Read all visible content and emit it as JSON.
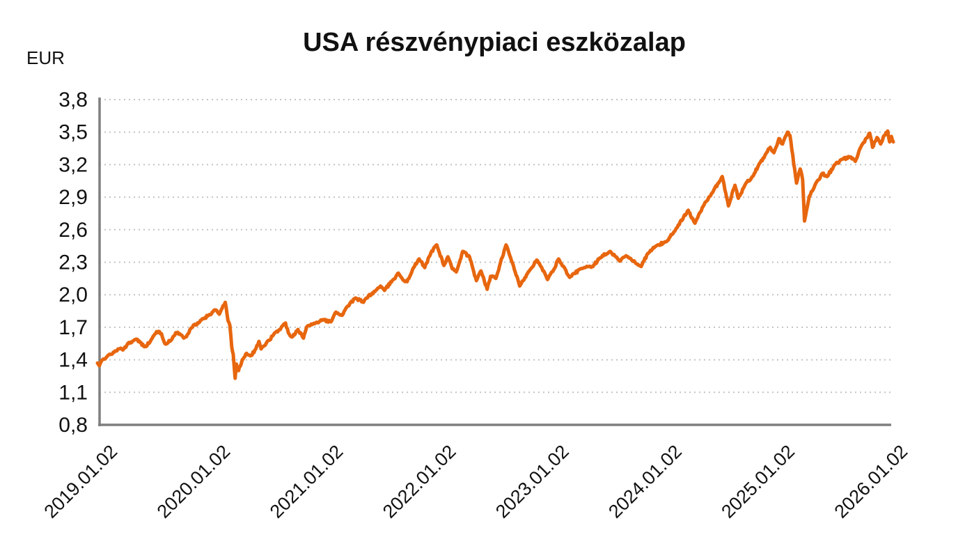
{
  "page": {
    "background_color": "#FFFFFF"
  },
  "chart_data": {
    "type": "line",
    "title": "USA részvénypiaci eszközalap",
    "ylabel": "EUR",
    "xlabel": "",
    "legend": "none",
    "grid": "horizontal-dotted",
    "ylim": [
      0.8,
      3.8
    ],
    "ytick_step": 0.3,
    "yticks": [
      {
        "v": 3.8,
        "label": "3,8"
      },
      {
        "v": 3.5,
        "label": "3,5"
      },
      {
        "v": 3.2,
        "label": "3,2"
      },
      {
        "v": 2.9,
        "label": "2,9"
      },
      {
        "v": 2.6,
        "label": "2,6"
      },
      {
        "v": 2.3,
        "label": "2,3"
      },
      {
        "v": 2.0,
        "label": "2,0"
      },
      {
        "v": 1.7,
        "label": "1,7"
      },
      {
        "v": 1.4,
        "label": "1,4"
      },
      {
        "v": 1.1,
        "label": "1,1"
      },
      {
        "v": 0.8,
        "label": "0,8"
      }
    ],
    "xticks": [
      {
        "date": "2019-01-02",
        "label": "2019.01.02"
      },
      {
        "date": "2020-01-02",
        "label": "2020.01.02"
      },
      {
        "date": "2021-01-02",
        "label": "2021.01.02"
      },
      {
        "date": "2022-01-02",
        "label": "2022.01.02"
      },
      {
        "date": "2023-01-02",
        "label": "2023.01.02"
      },
      {
        "date": "2024-01-02",
        "label": "2024.01.02"
      },
      {
        "date": "2025-01-02",
        "label": "2025.01.02"
      },
      {
        "date": "2026-01-02",
        "label": "2026.01.02"
      }
    ],
    "colors": {
      "line": "#E7660E",
      "axis": "#7F7F7F",
      "grid": "#C3C3C3",
      "text": "#111111"
    },
    "series": [
      {
        "name": "USA részvénypiaci eszközalap",
        "unit": "EUR",
        "points": [
          [
            "2019-01-02",
            1.37
          ],
          [
            "2019-01-08",
            1.345
          ],
          [
            "2019-01-18",
            1.4
          ],
          [
            "2019-02-05",
            1.44
          ],
          [
            "2019-02-25",
            1.47
          ],
          [
            "2019-03-12",
            1.5
          ],
          [
            "2019-03-25",
            1.49
          ],
          [
            "2019-04-10",
            1.55
          ],
          [
            "2019-04-25",
            1.57
          ],
          [
            "2019-05-08",
            1.59
          ],
          [
            "2019-05-20",
            1.56
          ],
          [
            "2019-06-03",
            1.52
          ],
          [
            "2019-06-20",
            1.56
          ],
          [
            "2019-07-12",
            1.66
          ],
          [
            "2019-07-28",
            1.64
          ],
          [
            "2019-08-06",
            1.56
          ],
          [
            "2019-08-15",
            1.55
          ],
          [
            "2019-08-28",
            1.58
          ],
          [
            "2019-09-12",
            1.65
          ],
          [
            "2019-09-25",
            1.64
          ],
          [
            "2019-10-08",
            1.6
          ],
          [
            "2019-10-22",
            1.64
          ],
          [
            "2019-11-08",
            1.72
          ],
          [
            "2019-11-25",
            1.74
          ],
          [
            "2019-12-10",
            1.78
          ],
          [
            "2019-12-27",
            1.81
          ],
          [
            "2020-01-17",
            1.86
          ],
          [
            "2020-01-31",
            1.82
          ],
          [
            "2020-02-12",
            1.9
          ],
          [
            "2020-02-19",
            1.93
          ],
          [
            "2020-02-28",
            1.76
          ],
          [
            "2020-03-06",
            1.72
          ],
          [
            "2020-03-12",
            1.52
          ],
          [
            "2020-03-17",
            1.45
          ],
          [
            "2020-03-23",
            1.23
          ],
          [
            "2020-03-27",
            1.36
          ],
          [
            "2020-04-03",
            1.3
          ],
          [
            "2020-04-15",
            1.4
          ],
          [
            "2020-04-29",
            1.46
          ],
          [
            "2020-05-14",
            1.44
          ],
          [
            "2020-05-29",
            1.5
          ],
          [
            "2020-06-08",
            1.57
          ],
          [
            "2020-06-15",
            1.5
          ],
          [
            "2020-06-26",
            1.53
          ],
          [
            "2020-07-10",
            1.58
          ],
          [
            "2020-07-22",
            1.62
          ],
          [
            "2020-08-10",
            1.67
          ],
          [
            "2020-09-02",
            1.74
          ],
          [
            "2020-09-11",
            1.65
          ],
          [
            "2020-09-23",
            1.61
          ],
          [
            "2020-10-12",
            1.68
          ],
          [
            "2020-10-30",
            1.6
          ],
          [
            "2020-11-09",
            1.7
          ],
          [
            "2020-11-24",
            1.73
          ],
          [
            "2020-12-08",
            1.74
          ],
          [
            "2020-12-31",
            1.77
          ],
          [
            "2021-01-27",
            1.75
          ],
          [
            "2021-02-12",
            1.84
          ],
          [
            "2021-03-04",
            1.81
          ],
          [
            "2021-03-17",
            1.88
          ],
          [
            "2021-04-16",
            1.97
          ],
          [
            "2021-05-12",
            1.93
          ],
          [
            "2021-05-28",
            1.99
          ],
          [
            "2021-06-18",
            2.03
          ],
          [
            "2021-07-06",
            2.08
          ],
          [
            "2021-07-19",
            2.04
          ],
          [
            "2021-08-13",
            2.13
          ],
          [
            "2021-09-02",
            2.2
          ],
          [
            "2021-09-20",
            2.13
          ],
          [
            "2021-09-30",
            2.12
          ],
          [
            "2021-10-21",
            2.25
          ],
          [
            "2021-11-08",
            2.33
          ],
          [
            "2021-11-26",
            2.25
          ],
          [
            "2021-12-10",
            2.35
          ],
          [
            "2021-12-28",
            2.44
          ],
          [
            "2022-01-04",
            2.46
          ],
          [
            "2022-01-27",
            2.27
          ],
          [
            "2022-02-09",
            2.35
          ],
          [
            "2022-02-23",
            2.24
          ],
          [
            "2022-03-08",
            2.21
          ],
          [
            "2022-03-29",
            2.4
          ],
          [
            "2022-04-20",
            2.35
          ],
          [
            "2022-05-12",
            2.13
          ],
          [
            "2022-05-27",
            2.22
          ],
          [
            "2022-06-16",
            2.05
          ],
          [
            "2022-06-27",
            2.17
          ],
          [
            "2022-07-14",
            2.15
          ],
          [
            "2022-08-16",
            2.46
          ],
          [
            "2022-09-06",
            2.29
          ],
          [
            "2022-09-29",
            2.08
          ],
          [
            "2022-10-27",
            2.21
          ],
          [
            "2022-11-23",
            2.32
          ],
          [
            "2022-12-07",
            2.26
          ],
          [
            "2022-12-28",
            2.14
          ],
          [
            "2023-01-17",
            2.23
          ],
          [
            "2023-02-02",
            2.33
          ],
          [
            "2023-03-10",
            2.16
          ],
          [
            "2023-04-14",
            2.24
          ],
          [
            "2023-05-24",
            2.26
          ],
          [
            "2023-06-15",
            2.34
          ],
          [
            "2023-07-19",
            2.4
          ],
          [
            "2023-08-18",
            2.31
          ],
          [
            "2023-09-08",
            2.36
          ],
          [
            "2023-10-27",
            2.26
          ],
          [
            "2023-11-17",
            2.38
          ],
          [
            "2023-12-14",
            2.45
          ],
          [
            "2024-01-17",
            2.49
          ],
          [
            "2024-02-15",
            2.6
          ],
          [
            "2024-03-28",
            2.78
          ],
          [
            "2024-04-19",
            2.66
          ],
          [
            "2024-05-21",
            2.85
          ],
          [
            "2024-06-14",
            2.94
          ],
          [
            "2024-07-16",
            3.09
          ],
          [
            "2024-08-05",
            2.82
          ],
          [
            "2024-08-26",
            3.01
          ],
          [
            "2024-09-06",
            2.89
          ],
          [
            "2024-10-01",
            3.03
          ],
          [
            "2024-10-25",
            3.1
          ],
          [
            "2024-11-11",
            3.2
          ],
          [
            "2024-12-06",
            3.31
          ],
          [
            "2024-12-18",
            3.36
          ],
          [
            "2024-12-30",
            3.31
          ],
          [
            "2025-01-15",
            3.44
          ],
          [
            "2025-01-27",
            3.39
          ],
          [
            "2025-02-12",
            3.5
          ],
          [
            "2025-02-20",
            3.47
          ],
          [
            "2025-03-13",
            3.03
          ],
          [
            "2025-03-25",
            3.16
          ],
          [
            "2025-04-02",
            3.06
          ],
          [
            "2025-04-08",
            2.68
          ],
          [
            "2025-04-24",
            2.91
          ],
          [
            "2025-05-15",
            3.03
          ],
          [
            "2025-06-05",
            3.12
          ],
          [
            "2025-06-20",
            3.09
          ],
          [
            "2025-07-15",
            3.2
          ],
          [
            "2025-08-08",
            3.25
          ],
          [
            "2025-09-05",
            3.27
          ],
          [
            "2025-09-19",
            3.23
          ],
          [
            "2025-10-10",
            3.38
          ],
          [
            "2025-10-28",
            3.45
          ],
          [
            "2025-11-05",
            3.49
          ],
          [
            "2025-11-14",
            3.36
          ],
          [
            "2025-11-28",
            3.45
          ],
          [
            "2025-12-10",
            3.39
          ],
          [
            "2025-12-22",
            3.47
          ],
          [
            "2026-01-02",
            3.51
          ],
          [
            "2026-01-08",
            3.41
          ],
          [
            "2026-01-14",
            3.46
          ],
          [
            "2026-01-20",
            3.41
          ]
        ]
      }
    ]
  }
}
